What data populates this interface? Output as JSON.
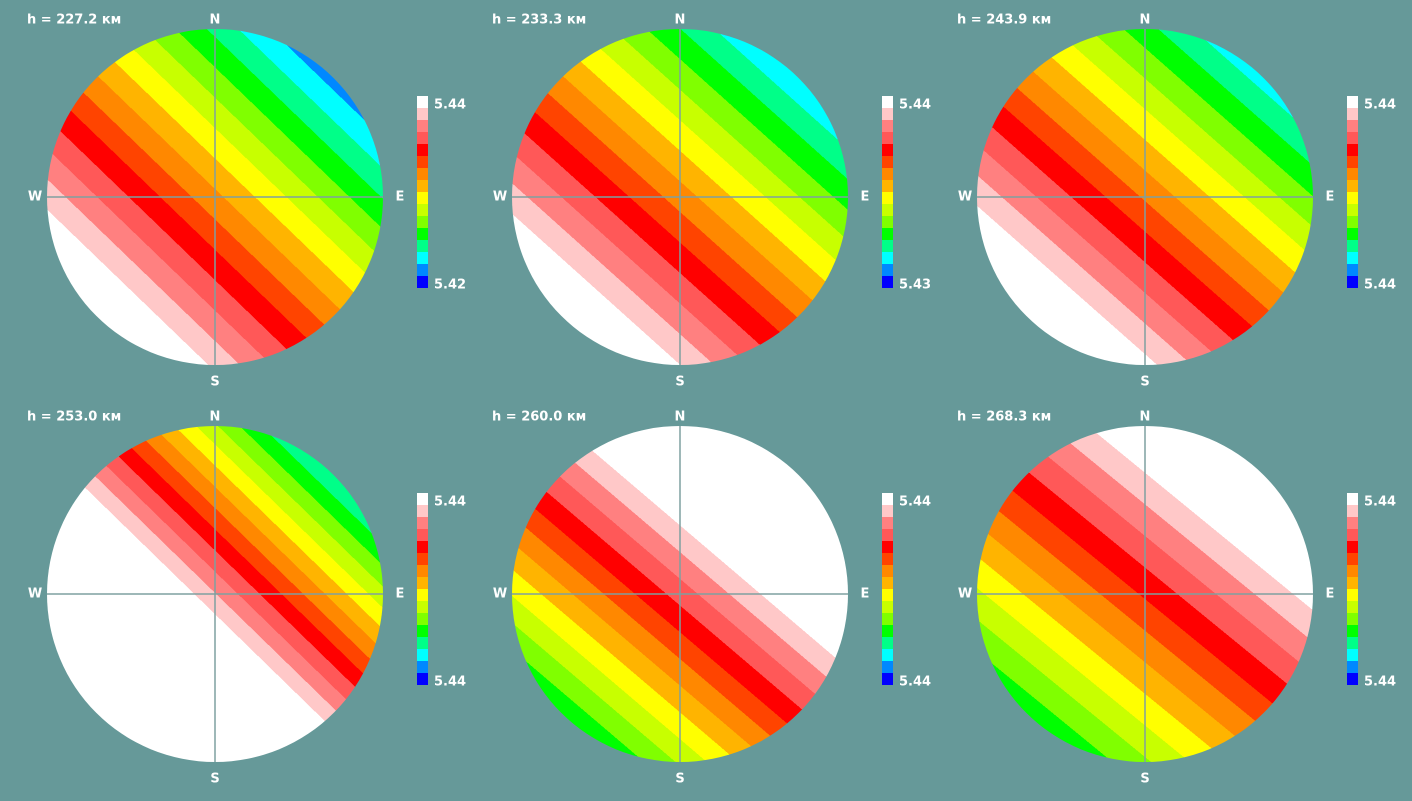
{
  "panels": [
    {
      "title": "h = 227.2 км",
      "north": "N",
      "south": "S",
      "west": "W",
      "east": "E",
      "colorbar_max": "5.44",
      "colorbar_min": "5.42"
    },
    {
      "title": "h = 233.3 км",
      "north": "N",
      "south": "S",
      "west": "W",
      "east": "E",
      "colorbar_max": "5.44",
      "colorbar_min": "5.43"
    },
    {
      "title": "h = 243.9 км",
      "north": "N",
      "south": "S",
      "west": "W",
      "east": "E",
      "colorbar_max": "5.44",
      "colorbar_min": "5.44"
    },
    {
      "title": "h = 253.0 км",
      "north": "N",
      "south": "S",
      "west": "W",
      "east": "E",
      "colorbar_max": "5.44",
      "colorbar_min": "5.44"
    },
    {
      "title": "h = 260.0 км",
      "north": "N",
      "south": "S",
      "west": "W",
      "east": "E",
      "colorbar_max": "5.44",
      "colorbar_min": "5.44"
    },
    {
      "title": "h = 268.3 км",
      "north": "N",
      "south": "S",
      "west": "W",
      "east": "E",
      "colorbar_max": "5.44",
      "colorbar_min": "5.44"
    }
  ]
}
